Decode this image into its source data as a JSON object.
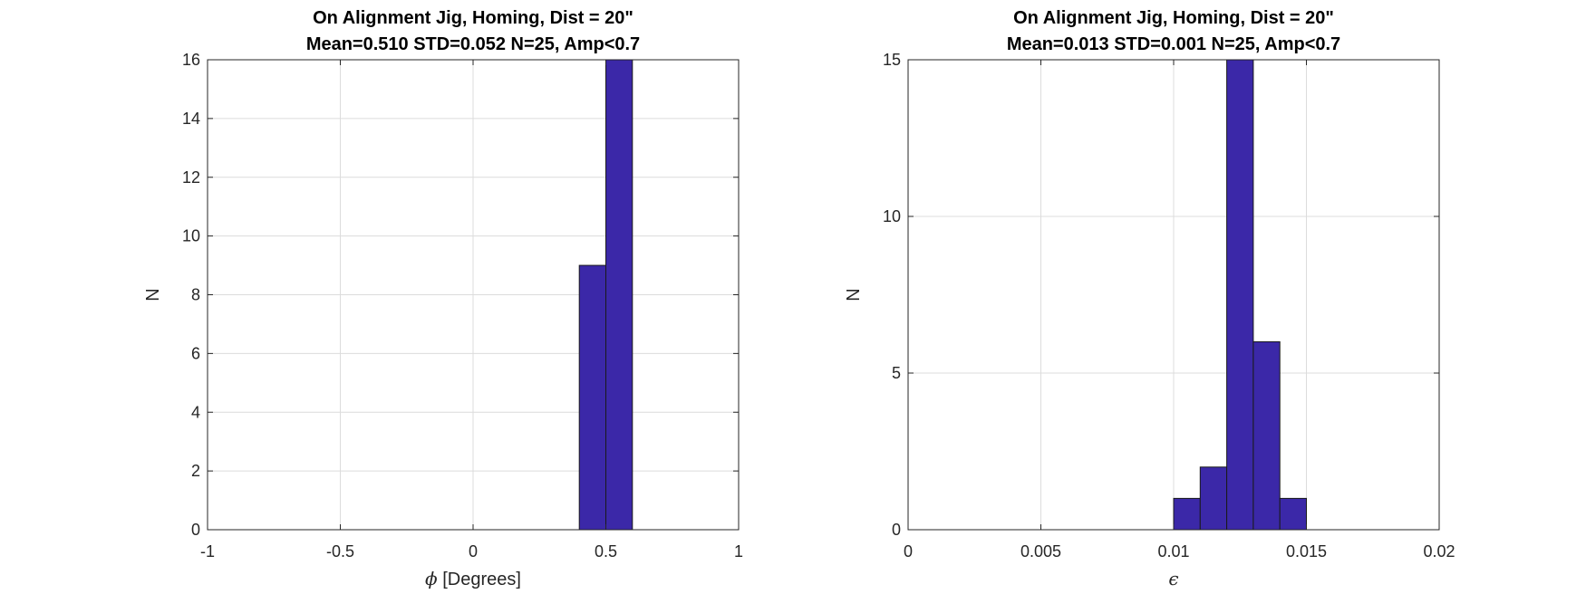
{
  "chart_data": [
    {
      "type": "bar",
      "chart_kind": "histogram",
      "title_lines": [
        "On Alignment Jig, Homing, Dist = 20\"",
        "Mean=0.510 STD=0.052 N=25, Amp<0.7"
      ],
      "xlabel_symbol": "ϕ",
      "xlabel_text": " [Degrees]",
      "ylabel": "N",
      "xlim": [
        -1,
        1
      ],
      "ylim": [
        0,
        16
      ],
      "xticks": [
        -1,
        -0.5,
        0,
        0.5,
        1
      ],
      "xtick_labels": [
        "-1",
        "-0.5",
        "0",
        "0.5",
        "1"
      ],
      "yticks": [
        0,
        2,
        4,
        6,
        8,
        10,
        12,
        14,
        16
      ],
      "ytick_labels": [
        "0",
        "2",
        "4",
        "6",
        "8",
        "10",
        "12",
        "14",
        "16"
      ],
      "grid": true,
      "bar_color": "#3b28a8",
      "bins": [
        {
          "x0": 0.4,
          "x1": 0.5,
          "count": 9
        },
        {
          "x0": 0.5,
          "x1": 0.6,
          "count": 16
        }
      ]
    },
    {
      "type": "bar",
      "chart_kind": "histogram",
      "title_lines": [
        "On Alignment Jig, Homing, Dist = 20\"",
        "Mean=0.013 STD=0.001 N=25, Amp<0.7"
      ],
      "xlabel_symbol": "ϵ",
      "xlabel_text": "",
      "ylabel": "N",
      "xlim": [
        0,
        0.02
      ],
      "ylim": [
        0,
        15
      ],
      "xticks": [
        0,
        0.005,
        0.01,
        0.015,
        0.02
      ],
      "xtick_labels": [
        "0",
        "0.005",
        "0.01",
        "0.015",
        "0.02"
      ],
      "yticks": [
        0,
        5,
        10,
        15
      ],
      "ytick_labels": [
        "0",
        "5",
        "10",
        "15"
      ],
      "grid": true,
      "bar_color": "#3b28a8",
      "bins": [
        {
          "x0": 0.01,
          "x1": 0.011,
          "count": 1
        },
        {
          "x0": 0.011,
          "x1": 0.012,
          "count": 2
        },
        {
          "x0": 0.012,
          "x1": 0.013,
          "count": 15
        },
        {
          "x0": 0.013,
          "x1": 0.014,
          "count": 6
        },
        {
          "x0": 0.014,
          "x1": 0.015,
          "count": 1
        }
      ]
    }
  ]
}
